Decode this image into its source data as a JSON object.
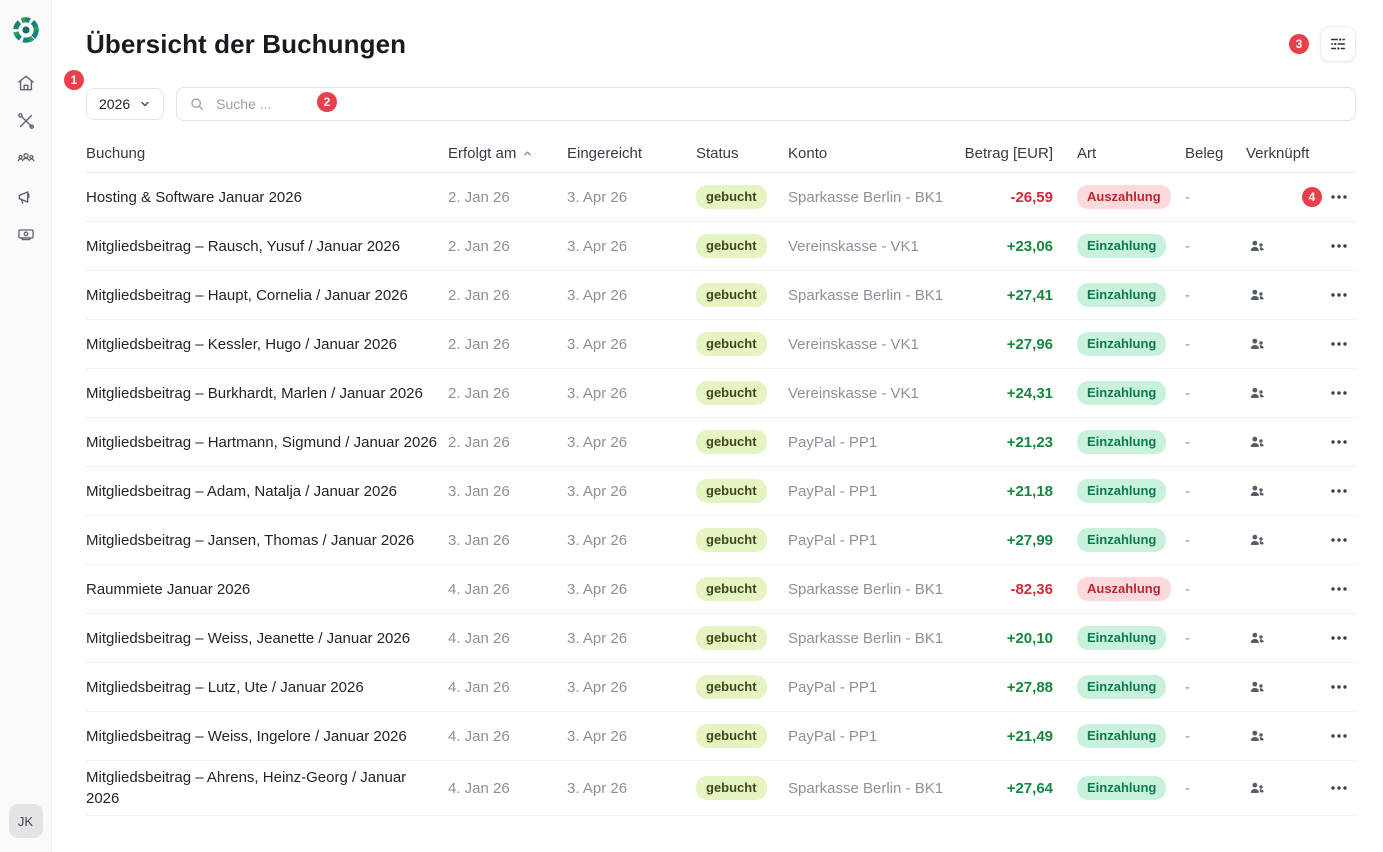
{
  "page": {
    "title": "Übersicht der Buchungen"
  },
  "colors": {
    "annotation_red": "#e8404a",
    "positive_green": "#17873f",
    "negative_red": "#cc2c38",
    "status_booked_bg": "#e6f3c3",
    "deposit_badge_bg": "#c9f2dd",
    "withdrawal_badge_bg": "#fcd9da",
    "logo_teal": "#148577",
    "logo_green": "#2f9e55"
  },
  "sidebar": {
    "avatar_initials": "JK",
    "icons": [
      "home-icon",
      "tools-icon",
      "members-icon",
      "megaphone-icon",
      "payments-icon"
    ]
  },
  "toolbar": {
    "year": "2026",
    "search_placeholder": "Suche ..."
  },
  "annotations": [
    "1",
    "2",
    "3",
    "4"
  ],
  "table": {
    "columns": [
      "Buchung",
      "Erfolgt am",
      "Eingereicht",
      "Status",
      "Konto",
      "Betrag [EUR]",
      "Art",
      "Beleg",
      "Verknüpft"
    ],
    "sort_column": "Erfolgt am",
    "sort_direction": "ascending",
    "rows": [
      {
        "buchung": "Hosting & Software Januar 2026",
        "erfolgt_am": "2. Jan 26",
        "eingereicht": "3. Apr 26",
        "status": "gebucht",
        "konto": "Sparkasse Berlin - BK1",
        "betrag": "-26,59",
        "art": "Auszahlung",
        "beleg": "-",
        "verknuepft_member": false,
        "annotation": "4"
      },
      {
        "buchung": "Mitgliedsbeitrag – Rausch, Yusuf / Januar 2026",
        "erfolgt_am": "2. Jan 26",
        "eingereicht": "3. Apr 26",
        "status": "gebucht",
        "konto": "Vereinskasse - VK1",
        "betrag": "+23,06",
        "art": "Einzahlung",
        "beleg": "-",
        "verknuepft_member": true,
        "annotation": null
      },
      {
        "buchung": "Mitgliedsbeitrag – Haupt, Cornelia / Januar 2026",
        "erfolgt_am": "2. Jan 26",
        "eingereicht": "3. Apr 26",
        "status": "gebucht",
        "konto": "Sparkasse Berlin - BK1",
        "betrag": "+27,41",
        "art": "Einzahlung",
        "beleg": "-",
        "verknuepft_member": true,
        "annotation": null
      },
      {
        "buchung": "Mitgliedsbeitrag – Kessler, Hugo / Januar 2026",
        "erfolgt_am": "2. Jan 26",
        "eingereicht": "3. Apr 26",
        "status": "gebucht",
        "konto": "Vereinskasse - VK1",
        "betrag": "+27,96",
        "art": "Einzahlung",
        "beleg": "-",
        "verknuepft_member": true,
        "annotation": null
      },
      {
        "buchung": "Mitgliedsbeitrag – Burkhardt, Marlen / Januar 2026",
        "erfolgt_am": "2. Jan 26",
        "eingereicht": "3. Apr 26",
        "status": "gebucht",
        "konto": "Vereinskasse - VK1",
        "betrag": "+24,31",
        "art": "Einzahlung",
        "beleg": "-",
        "verknuepft_member": true,
        "annotation": null
      },
      {
        "buchung": "Mitgliedsbeitrag – Hartmann, Sigmund / Januar 2026",
        "erfolgt_am": "2. Jan 26",
        "eingereicht": "3. Apr 26",
        "status": "gebucht",
        "konto": "PayPal - PP1",
        "betrag": "+21,23",
        "art": "Einzahlung",
        "beleg": "-",
        "verknuepft_member": true,
        "annotation": null
      },
      {
        "buchung": "Mitgliedsbeitrag – Adam, Natalja / Januar 2026",
        "erfolgt_am": "3. Jan 26",
        "eingereicht": "3. Apr 26",
        "status": "gebucht",
        "konto": "PayPal - PP1",
        "betrag": "+21,18",
        "art": "Einzahlung",
        "beleg": "-",
        "verknuepft_member": true,
        "annotation": null
      },
      {
        "buchung": "Mitgliedsbeitrag – Jansen, Thomas / Januar 2026",
        "erfolgt_am": "3. Jan 26",
        "eingereicht": "3. Apr 26",
        "status": "gebucht",
        "konto": "PayPal - PP1",
        "betrag": "+27,99",
        "art": "Einzahlung",
        "beleg": "-",
        "verknuepft_member": true,
        "annotation": null
      },
      {
        "buchung": "Raummiete Januar 2026",
        "erfolgt_am": "4. Jan 26",
        "eingereicht": "3. Apr 26",
        "status": "gebucht",
        "konto": "Sparkasse Berlin - BK1",
        "betrag": "-82,36",
        "art": "Auszahlung",
        "beleg": "-",
        "verknuepft_member": false,
        "annotation": null
      },
      {
        "buchung": "Mitgliedsbeitrag – Weiss, Jeanette / Januar 2026",
        "erfolgt_am": "4. Jan 26",
        "eingereicht": "3. Apr 26",
        "status": "gebucht",
        "konto": "Sparkasse Berlin - BK1",
        "betrag": "+20,10",
        "art": "Einzahlung",
        "beleg": "-",
        "verknuepft_member": true,
        "annotation": null
      },
      {
        "buchung": "Mitgliedsbeitrag – Lutz, Ute / Januar 2026",
        "erfolgt_am": "4. Jan 26",
        "eingereicht": "3. Apr 26",
        "status": "gebucht",
        "konto": "PayPal - PP1",
        "betrag": "+27,88",
        "art": "Einzahlung",
        "beleg": "-",
        "verknuepft_member": true,
        "annotation": null
      },
      {
        "buchung": "Mitgliedsbeitrag – Weiss, Ingelore / Januar 2026",
        "erfolgt_am": "4. Jan 26",
        "eingereicht": "3. Apr 26",
        "status": "gebucht",
        "konto": "PayPal - PP1",
        "betrag": "+21,49",
        "art": "Einzahlung",
        "beleg": "-",
        "verknuepft_member": true,
        "annotation": null
      },
      {
        "buchung": "Mitgliedsbeitrag – Ahrens, Heinz-Georg / Januar 2026",
        "erfolgt_am": "4. Jan 26",
        "eingereicht": "3. Apr 26",
        "status": "gebucht",
        "konto": "Sparkasse Berlin - BK1",
        "betrag": "+27,64",
        "art": "Einzahlung",
        "beleg": "-",
        "verknuepft_member": true,
        "annotation": null
      }
    ]
  }
}
